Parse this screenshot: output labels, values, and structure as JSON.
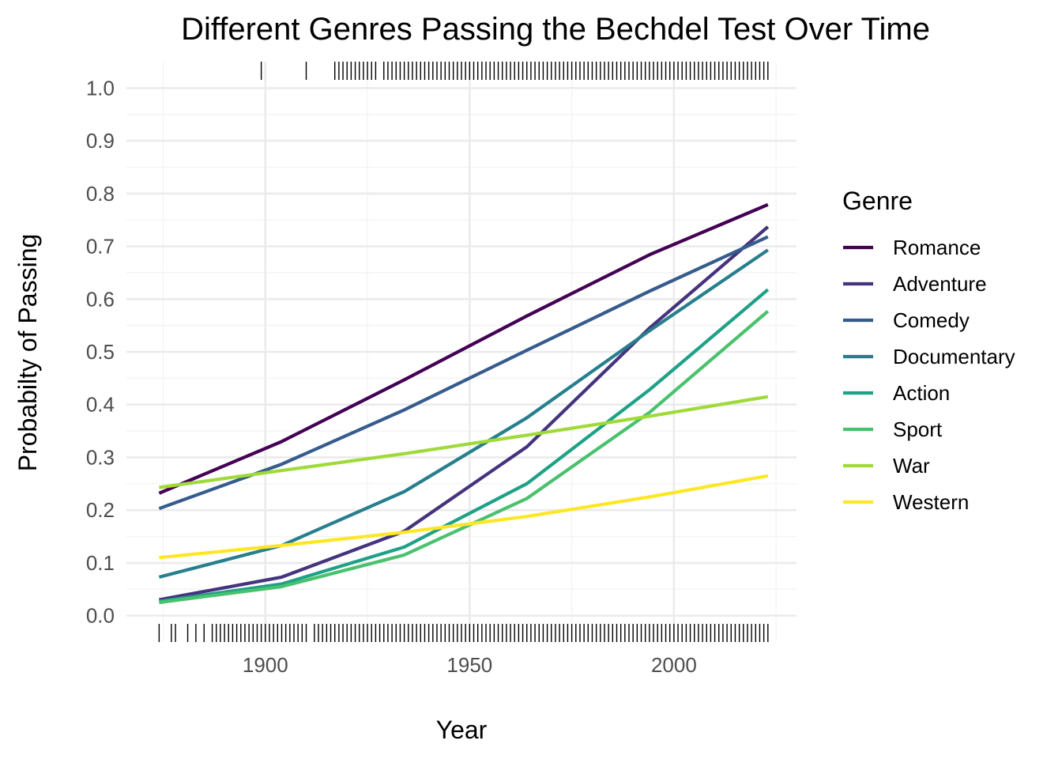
{
  "chart_data": {
    "type": "line",
    "title": "Different Genres Passing the Bechdel Test Over Time",
    "xlabel": "Year",
    "ylabel": "Probabilty of Passing",
    "xlim": [
      1866,
      2030
    ],
    "ylim": [
      -0.05,
      1.05
    ],
    "x_ticks": [
      1900,
      1950,
      2000
    ],
    "x_tick_labels": [
      "1900",
      "1950",
      "2000"
    ],
    "y_ticks": [
      0.0,
      0.1,
      0.2,
      0.3,
      0.4,
      0.5,
      0.6,
      0.7,
      0.8,
      0.9,
      1.0
    ],
    "y_tick_labels": [
      "0.0",
      "0.1",
      "0.2",
      "0.3",
      "0.4",
      "0.5",
      "0.6",
      "0.7",
      "0.8",
      "0.9",
      "1.0"
    ],
    "grid": true,
    "legend": {
      "title": "Genre",
      "position": "right"
    },
    "x": [
      1874,
      1904,
      1934,
      1964,
      1994,
      2023
    ],
    "series": [
      {
        "name": "Romance",
        "color": "#440154",
        "values": [
          0.232,
          0.33,
          0.447,
          0.568,
          0.684,
          0.779
        ]
      },
      {
        "name": "Adventure",
        "color": "#46337E",
        "values": [
          0.03,
          0.073,
          0.16,
          0.32,
          0.545,
          0.737
        ]
      },
      {
        "name": "Comedy",
        "color": "#365C8D",
        "values": [
          0.203,
          0.287,
          0.39,
          0.503,
          0.615,
          0.718
        ]
      },
      {
        "name": "Documentary",
        "color": "#277F8E",
        "values": [
          0.073,
          0.133,
          0.235,
          0.375,
          0.54,
          0.693
        ]
      },
      {
        "name": "Action",
        "color": "#1FA187",
        "values": [
          0.027,
          0.06,
          0.13,
          0.25,
          0.428,
          0.618
        ]
      },
      {
        "name": "Sport",
        "color": "#4AC16D",
        "values": [
          0.025,
          0.055,
          0.115,
          0.222,
          0.385,
          0.577
        ]
      },
      {
        "name": "War",
        "color": "#A0DA39",
        "values": [
          0.243,
          0.275,
          0.307,
          0.342,
          0.378,
          0.415
        ]
      },
      {
        "name": "Western",
        "color": "#FDE725",
        "values": [
          0.11,
          0.133,
          0.158,
          0.188,
          0.225,
          0.265
        ]
      }
    ],
    "rug_top_years": [
      1899,
      1910,
      1917,
      1918,
      1919,
      1920,
      1921,
      1922,
      1923,
      1924,
      1925,
      1926,
      1927,
      1929,
      1930,
      1931,
      1932,
      1933,
      1934,
      1935,
      1936,
      1937,
      1938,
      1939,
      1940,
      1941,
      1942,
      1943,
      1944,
      1945,
      1946,
      1947,
      1948,
      1949,
      1950,
      1951,
      1952,
      1953,
      1954,
      1955,
      1956,
      1957,
      1958,
      1959,
      1960,
      1961,
      1962,
      1963,
      1964,
      1965,
      1966,
      1967,
      1968,
      1969,
      1970,
      1971,
      1972,
      1973,
      1974,
      1975,
      1976,
      1977,
      1978,
      1979,
      1980,
      1981,
      1982,
      1983,
      1984,
      1985,
      1986,
      1987,
      1988,
      1989,
      1990,
      1991,
      1992,
      1993,
      1994,
      1995,
      1996,
      1997,
      1998,
      1999,
      2000,
      2001,
      2002,
      2003,
      2004,
      2005,
      2006,
      2007,
      2008,
      2009,
      2010,
      2011,
      2012,
      2013,
      2014,
      2015,
      2016,
      2017,
      2018,
      2019,
      2020,
      2021,
      2022,
      2023
    ],
    "rug_bottom_years": [
      1874,
      1877,
      1878,
      1881,
      1883,
      1885,
      1887,
      1888,
      1889,
      1890,
      1891,
      1892,
      1893,
      1894,
      1895,
      1896,
      1897,
      1898,
      1899,
      1900,
      1901,
      1902,
      1903,
      1904,
      1905,
      1906,
      1907,
      1908,
      1909,
      1910,
      1912,
      1913,
      1914,
      1915,
      1916,
      1917,
      1918,
      1919,
      1920,
      1921,
      1922,
      1923,
      1924,
      1925,
      1926,
      1927,
      1928,
      1929,
      1930,
      1931,
      1932,
      1933,
      1934,
      1935,
      1936,
      1937,
      1938,
      1939,
      1940,
      1941,
      1942,
      1943,
      1944,
      1945,
      1946,
      1947,
      1948,
      1949,
      1950,
      1951,
      1952,
      1953,
      1954,
      1955,
      1956,
      1957,
      1958,
      1959,
      1960,
      1961,
      1962,
      1963,
      1964,
      1965,
      1966,
      1967,
      1968,
      1969,
      1970,
      1971,
      1972,
      1973,
      1974,
      1975,
      1976,
      1977,
      1978,
      1979,
      1980,
      1981,
      1982,
      1983,
      1984,
      1985,
      1986,
      1987,
      1988,
      1989,
      1990,
      1991,
      1992,
      1993,
      1994,
      1995,
      1996,
      1997,
      1998,
      1999,
      2000,
      2001,
      2002,
      2003,
      2004,
      2005,
      2006,
      2007,
      2008,
      2009,
      2010,
      2011,
      2012,
      2013,
      2014,
      2015,
      2016,
      2017,
      2018,
      2019,
      2020,
      2021,
      2022,
      2023
    ]
  }
}
